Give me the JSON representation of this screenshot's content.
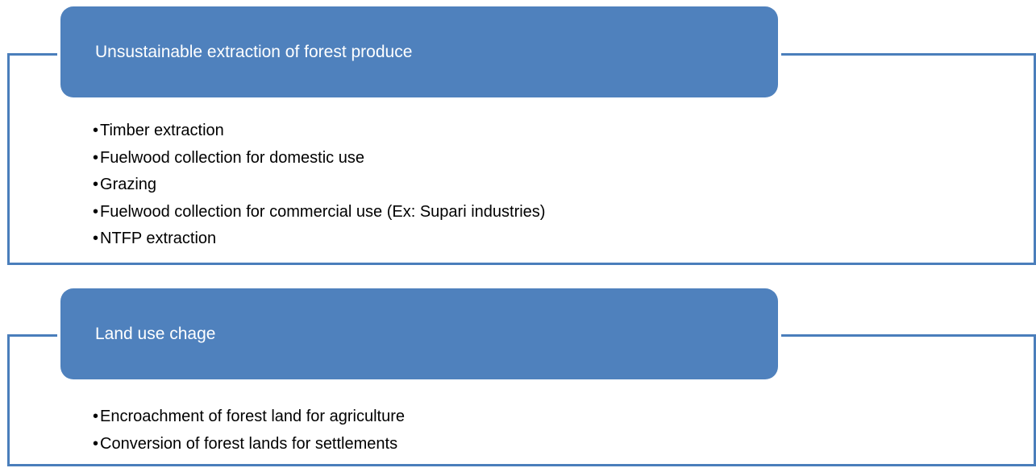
{
  "groups": [
    {
      "title": "Unsustainable extraction of forest produce",
      "items": [
        "Timber extraction",
        "Fuelwood collection for domestic use",
        "Grazing",
        "Fuelwood collection for commercial use (Ex: Supari industries)",
        "NTFP extraction"
      ]
    },
    {
      "title": "Land use chage",
      "items": [
        "Encroachment of forest land for agriculture",
        "Conversion of forest lands for settlements"
      ]
    }
  ]
}
